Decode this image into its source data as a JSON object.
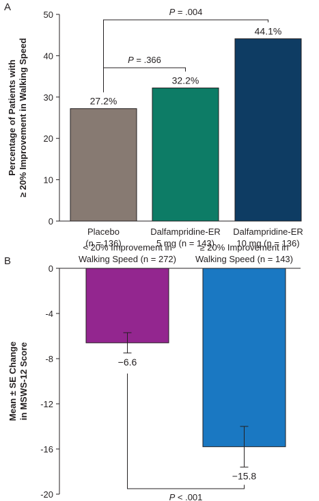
{
  "chart_data": [
    {
      "panel_label": "A",
      "type": "bar",
      "ylabel_lines": [
        "Percentage of Patients with",
        "≥ 20% Improvement in Walking Speed"
      ],
      "ylim": [
        0,
        50
      ],
      "yticks": [
        0,
        10,
        20,
        30,
        40,
        50
      ],
      "categories": [
        [
          "Placebo",
          "(n = 136)"
        ],
        [
          "Dalfampridine-ER",
          "5 mg (n = 143)"
        ],
        [
          "Dalfampridine-ER",
          "10 mg (n = 136)"
        ]
      ],
      "values": [
        27.2,
        32.2,
        44.1
      ],
      "value_labels": [
        "27.2%",
        "32.2%",
        "44.1%"
      ],
      "colors": [
        "#877a72",
        "#0d7c66",
        "#0e3c63"
      ],
      "comparisons": [
        {
          "from": 0,
          "to": 1,
          "p_prefix": "P",
          "p_text": " = .366"
        },
        {
          "from": 0,
          "to": 2,
          "p_prefix": "P",
          "p_text": " = .004"
        }
      ],
      "grid": false
    },
    {
      "panel_label": "B",
      "type": "bar",
      "ylabel_lines": [
        "Mean ± SE Change",
        "in MSWS-12 Score"
      ],
      "ylim": [
        -20,
        0
      ],
      "yticks": [
        0,
        -4,
        -8,
        -12,
        -16,
        -20
      ],
      "ytick_labels": [
        "0",
        "-4",
        "-8",
        "-12",
        "-16",
        "-20"
      ],
      "categories": [
        [
          "< 20% Improvement in",
          "Walking Speed (n = 272)"
        ],
        [
          "≥ 20% Improvement in",
          "Walking Speed (n = 143)"
        ]
      ],
      "values": [
        -6.6,
        -15.8
      ],
      "errors": [
        0.9,
        1.8
      ],
      "value_labels": [
        "−6.6",
        "−15.8"
      ],
      "colors": [
        "#93268f",
        "#1a78c2"
      ],
      "comparisons": [
        {
          "from": 0,
          "to": 1,
          "p_prefix": "P",
          "p_text": " < .001"
        }
      ],
      "grid": false
    }
  ]
}
